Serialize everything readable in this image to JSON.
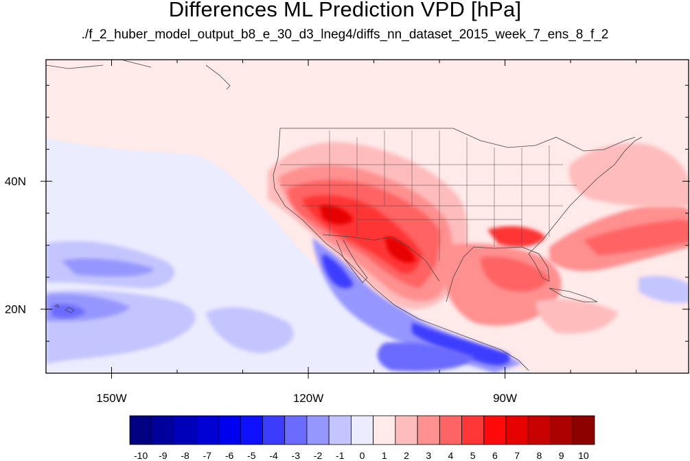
{
  "chart_data": {
    "type": "heatmap",
    "title": "Differences ML Prediction VPD [hPa]",
    "subtitle": "./f_2_huber_model_output_b8_e_30_d3_lneg4/diffs_nn_dataset_2015_week_7_ens_8_f_2",
    "map_region": "North America, Eastern Pacific, Western Atlantic",
    "lon_range": [
      -160,
      -62
    ],
    "lat_range": [
      10,
      59
    ],
    "x_ticks": [
      {
        "lon": -150,
        "label": "150W"
      },
      {
        "lon": -120,
        "label": "120W"
      },
      {
        "lon": -90,
        "label": "90W"
      }
    ],
    "y_ticks": [
      {
        "lat": 20,
        "label": "20N"
      },
      {
        "lat": 40,
        "label": "40N"
      }
    ],
    "colorbar": {
      "labels": [
        "-10",
        "-9",
        "-8",
        "-7",
        "-6",
        "-5",
        "-4",
        "-3",
        "-2",
        "-1",
        "0",
        "1",
        "2",
        "3",
        "4",
        "5",
        "6",
        "7",
        "8",
        "9",
        "10"
      ],
      "colors": [
        "#000080",
        "#00009c",
        "#0000b8",
        "#0000d4",
        "#0000f0",
        "#0f0fff",
        "#3c3cff",
        "#6a6aff",
        "#9696ff",
        "#c4c4ff",
        "#ececff",
        "#ffeaea",
        "#ffbcbc",
        "#ff9090",
        "#ff6464",
        "#ff3636",
        "#ff0a0a",
        "#e60000",
        "#c80000",
        "#aa0000",
        "#8c0000"
      ]
    },
    "features": [
      {
        "name": "southwest US and northern Mexico warm anomaly",
        "lon": -110,
        "lat": 34,
        "value": 7
      },
      {
        "name": "Gulf of Mexico warm anomaly",
        "lon": -90,
        "lat": 26,
        "value": 5
      },
      {
        "name": "southeast US warm anomaly",
        "lon": -86,
        "lat": 32,
        "value": 6
      },
      {
        "name": "western Atlantic warm band",
        "lon": -70,
        "lat": 32,
        "value": 4
      },
      {
        "name": "Baja California coastal cold anomaly",
        "lon": -115,
        "lat": 25,
        "value": -5
      },
      {
        "name": "Mexican Pacific coast cold band",
        "lon": -98,
        "lat": 14,
        "value": -5
      },
      {
        "name": "Hawaii region cold anomaly",
        "lon": -155,
        "lat": 21,
        "value": -3
      },
      {
        "name": "subtropical eastern Pacific cold patch",
        "lon": -147,
        "lat": 26,
        "value": -2
      }
    ]
  }
}
